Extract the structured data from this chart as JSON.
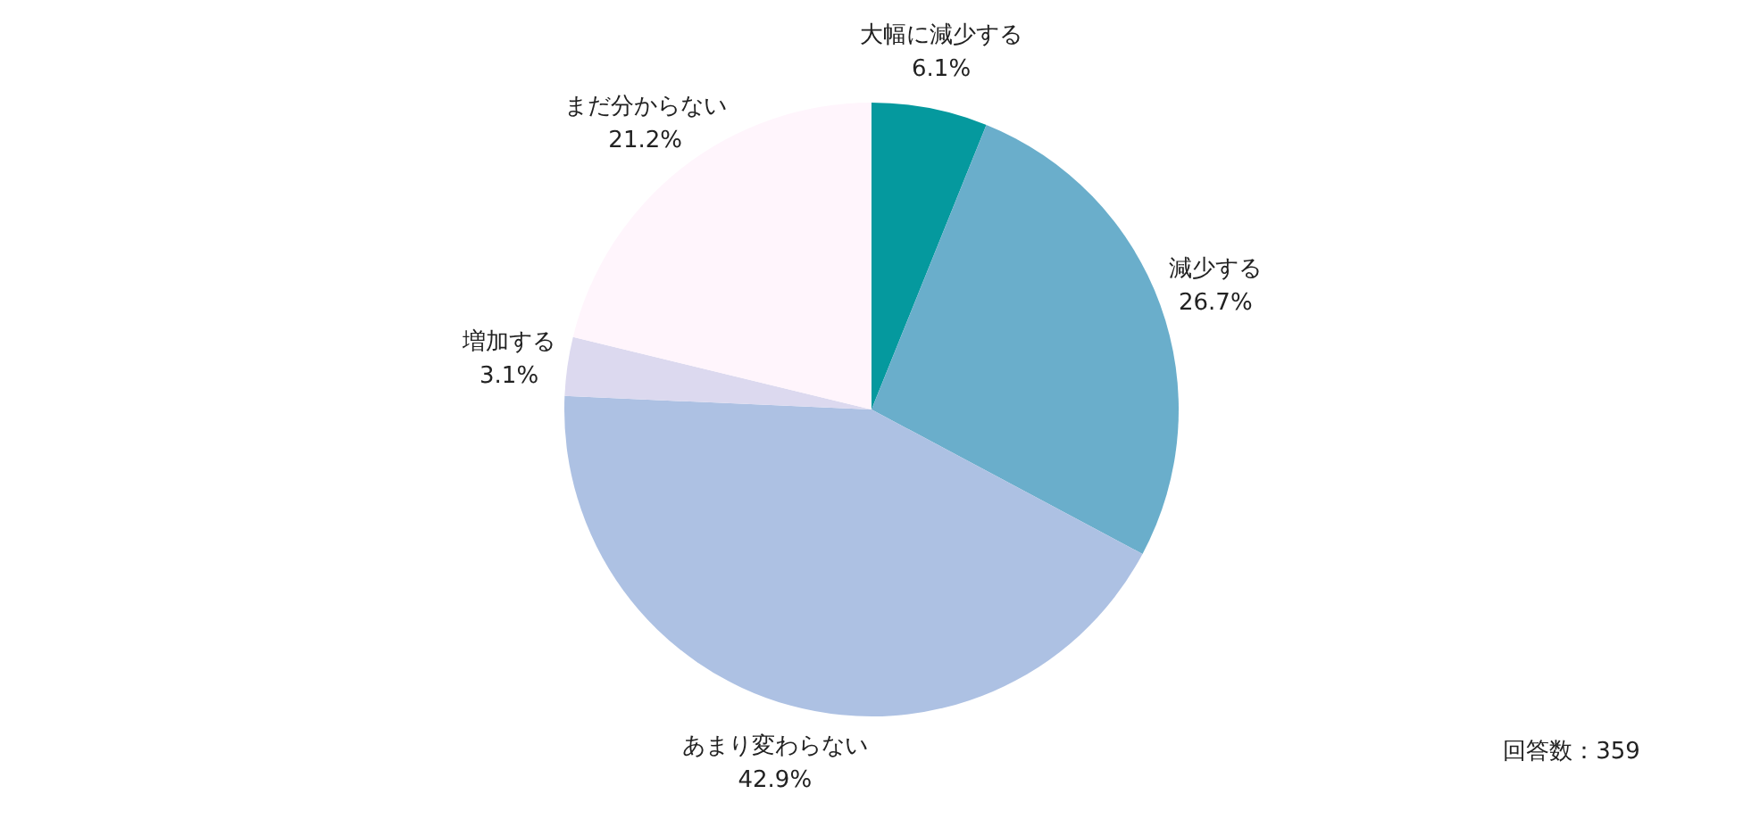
{
  "chart_data": {
    "type": "pie",
    "categories": [
      "大幅に減少する",
      "減少する",
      "あまり変わらない",
      "増加する",
      "まだ分からない"
    ],
    "values": [
      6.1,
      26.7,
      42.9,
      3.1,
      21.2
    ],
    "value_labels": [
      "6.1%",
      "26.7%",
      "42.9%",
      "3.1%",
      "21.2%"
    ],
    "colors": [
      "#05999e",
      "#6aaecb",
      "#adc1e3",
      "#dcd9ef",
      "#fff5fc"
    ],
    "annotations": [
      "回答数：359"
    ]
  }
}
